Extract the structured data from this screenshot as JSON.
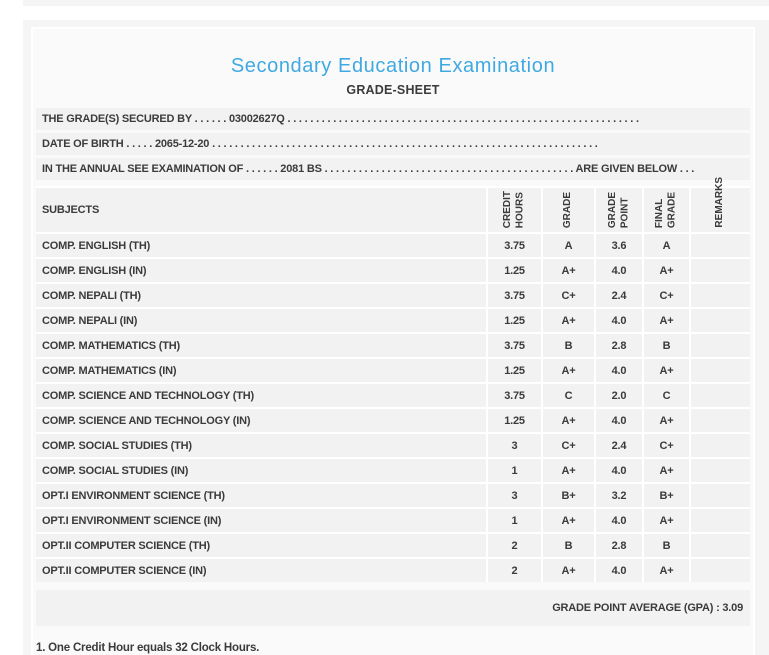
{
  "colors": {
    "accent": "#41a9e1",
    "text": "#3b3b3b",
    "band": "#f2f2f2"
  },
  "header": {
    "title": "Secondary Education Examination",
    "subtitle": "GRADE-SHEET"
  },
  "info_lines": [
    "THE GRADE(S) SECURED BY . . . . . . 03002627Q . . . . . . . . . . . . . . . . . . . . . . . . . . . . . . . . . . . . . . . . . . . . . . . . . . . . . . . . . . . . . .",
    "DATE OF BIRTH . . . . . 2065-12-20 . . . . . . . . . . . . . . . . . . . . . . . . . . . . . . . . . . . . . . . . . . . . . . . . . . . . . . . . . . . . . . . . . . . .",
    "IN THE ANNUAL SEE EXAMINATION OF . . . . . . 2081 BS . . . . . . . . . . . . . . . . . . . . . . . . . . . . . . . . . . . . . . . . . . . . ARE GIVEN BELOW . . ."
  ],
  "table": {
    "subjects_label": "SUBJECTS",
    "rotated_headers": [
      "CREDIT\nHOURS",
      "GRADE",
      "GRADE\nPOINT",
      "FINAL\nGRADE",
      "REMARKS"
    ],
    "rows": [
      {
        "subject": "COMP. ENGLISH (TH)",
        "credit_hours": "3.75",
        "grade": "A",
        "grade_point": "3.6",
        "final_grade": "A",
        "remarks": ""
      },
      {
        "subject": "COMP. ENGLISH (IN)",
        "credit_hours": "1.25",
        "grade": "A+",
        "grade_point": "4.0",
        "final_grade": "A+",
        "remarks": ""
      },
      {
        "subject": "COMP. NEPALI (TH)",
        "credit_hours": "3.75",
        "grade": "C+",
        "grade_point": "2.4",
        "final_grade": "C+",
        "remarks": ""
      },
      {
        "subject": "COMP. NEPALI (IN)",
        "credit_hours": "1.25",
        "grade": "A+",
        "grade_point": "4.0",
        "final_grade": "A+",
        "remarks": ""
      },
      {
        "subject": "COMP. MATHEMATICS (TH)",
        "credit_hours": "3.75",
        "grade": "B",
        "grade_point": "2.8",
        "final_grade": "B",
        "remarks": ""
      },
      {
        "subject": "COMP. MATHEMATICS (IN)",
        "credit_hours": "1.25",
        "grade": "A+",
        "grade_point": "4.0",
        "final_grade": "A+",
        "remarks": ""
      },
      {
        "subject": "COMP. SCIENCE AND TECHNOLOGY (TH)",
        "credit_hours": "3.75",
        "grade": "C",
        "grade_point": "2.0",
        "final_grade": "C",
        "remarks": ""
      },
      {
        "subject": "COMP. SCIENCE AND TECHNOLOGY (IN)",
        "credit_hours": "1.25",
        "grade": "A+",
        "grade_point": "4.0",
        "final_grade": "A+",
        "remarks": ""
      },
      {
        "subject": "COMP. SOCIAL STUDIES (TH)",
        "credit_hours": "3",
        "grade": "C+",
        "grade_point": "2.4",
        "final_grade": "C+",
        "remarks": ""
      },
      {
        "subject": "COMP. SOCIAL STUDIES (IN)",
        "credit_hours": "1",
        "grade": "A+",
        "grade_point": "4.0",
        "final_grade": "A+",
        "remarks": ""
      },
      {
        "subject": "OPT.I ENVIRONMENT SCIENCE (TH)",
        "credit_hours": "3",
        "grade": "B+",
        "grade_point": "3.2",
        "final_grade": "B+",
        "remarks": ""
      },
      {
        "subject": "OPT.I ENVIRONMENT SCIENCE (IN)",
        "credit_hours": "1",
        "grade": "A+",
        "grade_point": "4.0",
        "final_grade": "A+",
        "remarks": ""
      },
      {
        "subject": "OPT.II COMPUTER SCIENCE (TH)",
        "credit_hours": "2",
        "grade": "B",
        "grade_point": "2.8",
        "final_grade": "B",
        "remarks": ""
      },
      {
        "subject": "OPT.II COMPUTER SCIENCE (IN)",
        "credit_hours": "2",
        "grade": "A+",
        "grade_point": "4.0",
        "final_grade": "A+",
        "remarks": ""
      }
    ],
    "gpa_text": "GRADE POINT AVERAGE (GPA) : 3.09"
  },
  "footnote": "1. One Credit Hour equals 32 Clock Hours."
}
